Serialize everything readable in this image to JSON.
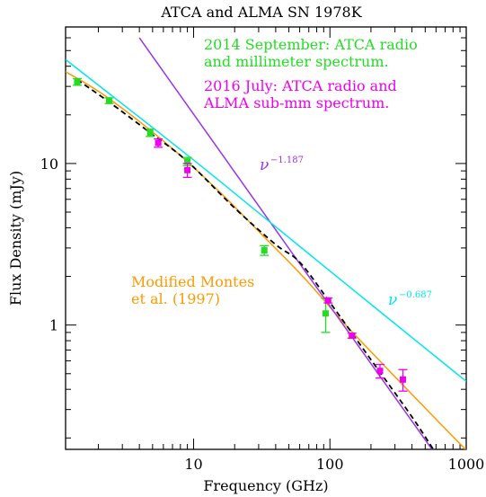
{
  "chart_data": {
    "type": "scatter",
    "title": "ATCA and ALMA SN 1978K",
    "xlabel": "Frequency (GHz)",
    "ylabel": "Flux Density (mJy)",
    "xscale": "log",
    "yscale": "log",
    "xlim": [
      1.15,
      1000
    ],
    "ylim": [
      0.17,
      70
    ],
    "x_ticks": [
      10,
      100,
      1000
    ],
    "x_tick_labels": [
      "10",
      "100",
      "1000"
    ],
    "y_ticks": [
      1,
      10
    ],
    "y_tick_labels": [
      "1",
      "10"
    ],
    "annotations": {
      "legend_2014_line1": "2014 September: ATCA radio",
      "legend_2014_line2": "and millimeter spectrum.",
      "legend_2016_line1": "2016 July: ATCA radio and",
      "legend_2016_line2": "ALMA sub-mm spectrum.",
      "montes_line1": "Modified Montes",
      "montes_line2": "et al. (1997)",
      "slope_steep_base": "ν",
      "slope_steep_exp": "−1.187",
      "slope_shallow_base": "ν",
      "slope_shallow_exp": "−0.687"
    },
    "series": [
      {
        "name": "2014 September: ATCA radio and millimeter spectrum.",
        "color": "#22dd22",
        "points": [
          {
            "x": 1.4,
            "y": 32.0,
            "err": 1.5
          },
          {
            "x": 2.4,
            "y": 24.5,
            "err": 1.0
          },
          {
            "x": 4.8,
            "y": 15.5,
            "err": 0.8
          },
          {
            "x": 9.0,
            "y": 10.3,
            "err": 0.6
          },
          {
            "x": 33.0,
            "y": 2.9,
            "err": 0.2
          },
          {
            "x": 93.0,
            "y": 1.18,
            "err": 0.28
          }
        ]
      },
      {
        "name": "2016 July: ATCA radio and ALMA sub-mm spectrum.",
        "color": "#ee00ee",
        "points": [
          {
            "x": 5.5,
            "y": 13.4,
            "err": 0.8
          },
          {
            "x": 9.0,
            "y": 9.1,
            "err": 0.9
          },
          {
            "x": 97.0,
            "y": 1.42,
            "err": 0.05
          },
          {
            "x": 145.0,
            "y": 0.86,
            "err": 0.03
          },
          {
            "x": 233.0,
            "y": 0.52,
            "err": 0.05
          },
          {
            "x": 343.0,
            "y": 0.46,
            "err": 0.07
          }
        ]
      }
    ],
    "lines": [
      {
        "name": "Modified Montes et al. (1997)",
        "color": "#ff9900",
        "style": "solid",
        "x": [
          1.15,
          2,
          4,
          8,
          16,
          32,
          64,
          128,
          256,
          512,
          1000
        ],
        "y": [
          37.0,
          28.0,
          18.2,
          11.2,
          6.5,
          3.6,
          1.98,
          1.02,
          0.55,
          0.3,
          0.168
        ]
      },
      {
        "name": "nu^-1.187",
        "color": "#9933ee",
        "style": "solid",
        "x": [
          4.0,
          55.0,
          140.0,
          600.0
        ],
        "y": [
          60.0,
          2.66,
          0.88,
          0.157
        ]
      },
      {
        "name": "nu^-0.687",
        "color": "#00e5ee",
        "style": "solid",
        "x": [
          1.15,
          10.0,
          100.0,
          1000.0
        ],
        "y": [
          44.0,
          10.5,
          2.16,
          0.448
        ]
      },
      {
        "name": "combined",
        "color": "#000000",
        "style": "dashed",
        "x": [
          1.4,
          2.4,
          4.8,
          9.0,
          20.0,
          40.0,
          60.0,
          100.0,
          200.0,
          400.0,
          600.0
        ],
        "y": [
          33.0,
          24.0,
          15.5,
          10.3,
          5.3,
          3.15,
          2.45,
          1.38,
          0.61,
          0.27,
          0.16
        ]
      }
    ]
  }
}
